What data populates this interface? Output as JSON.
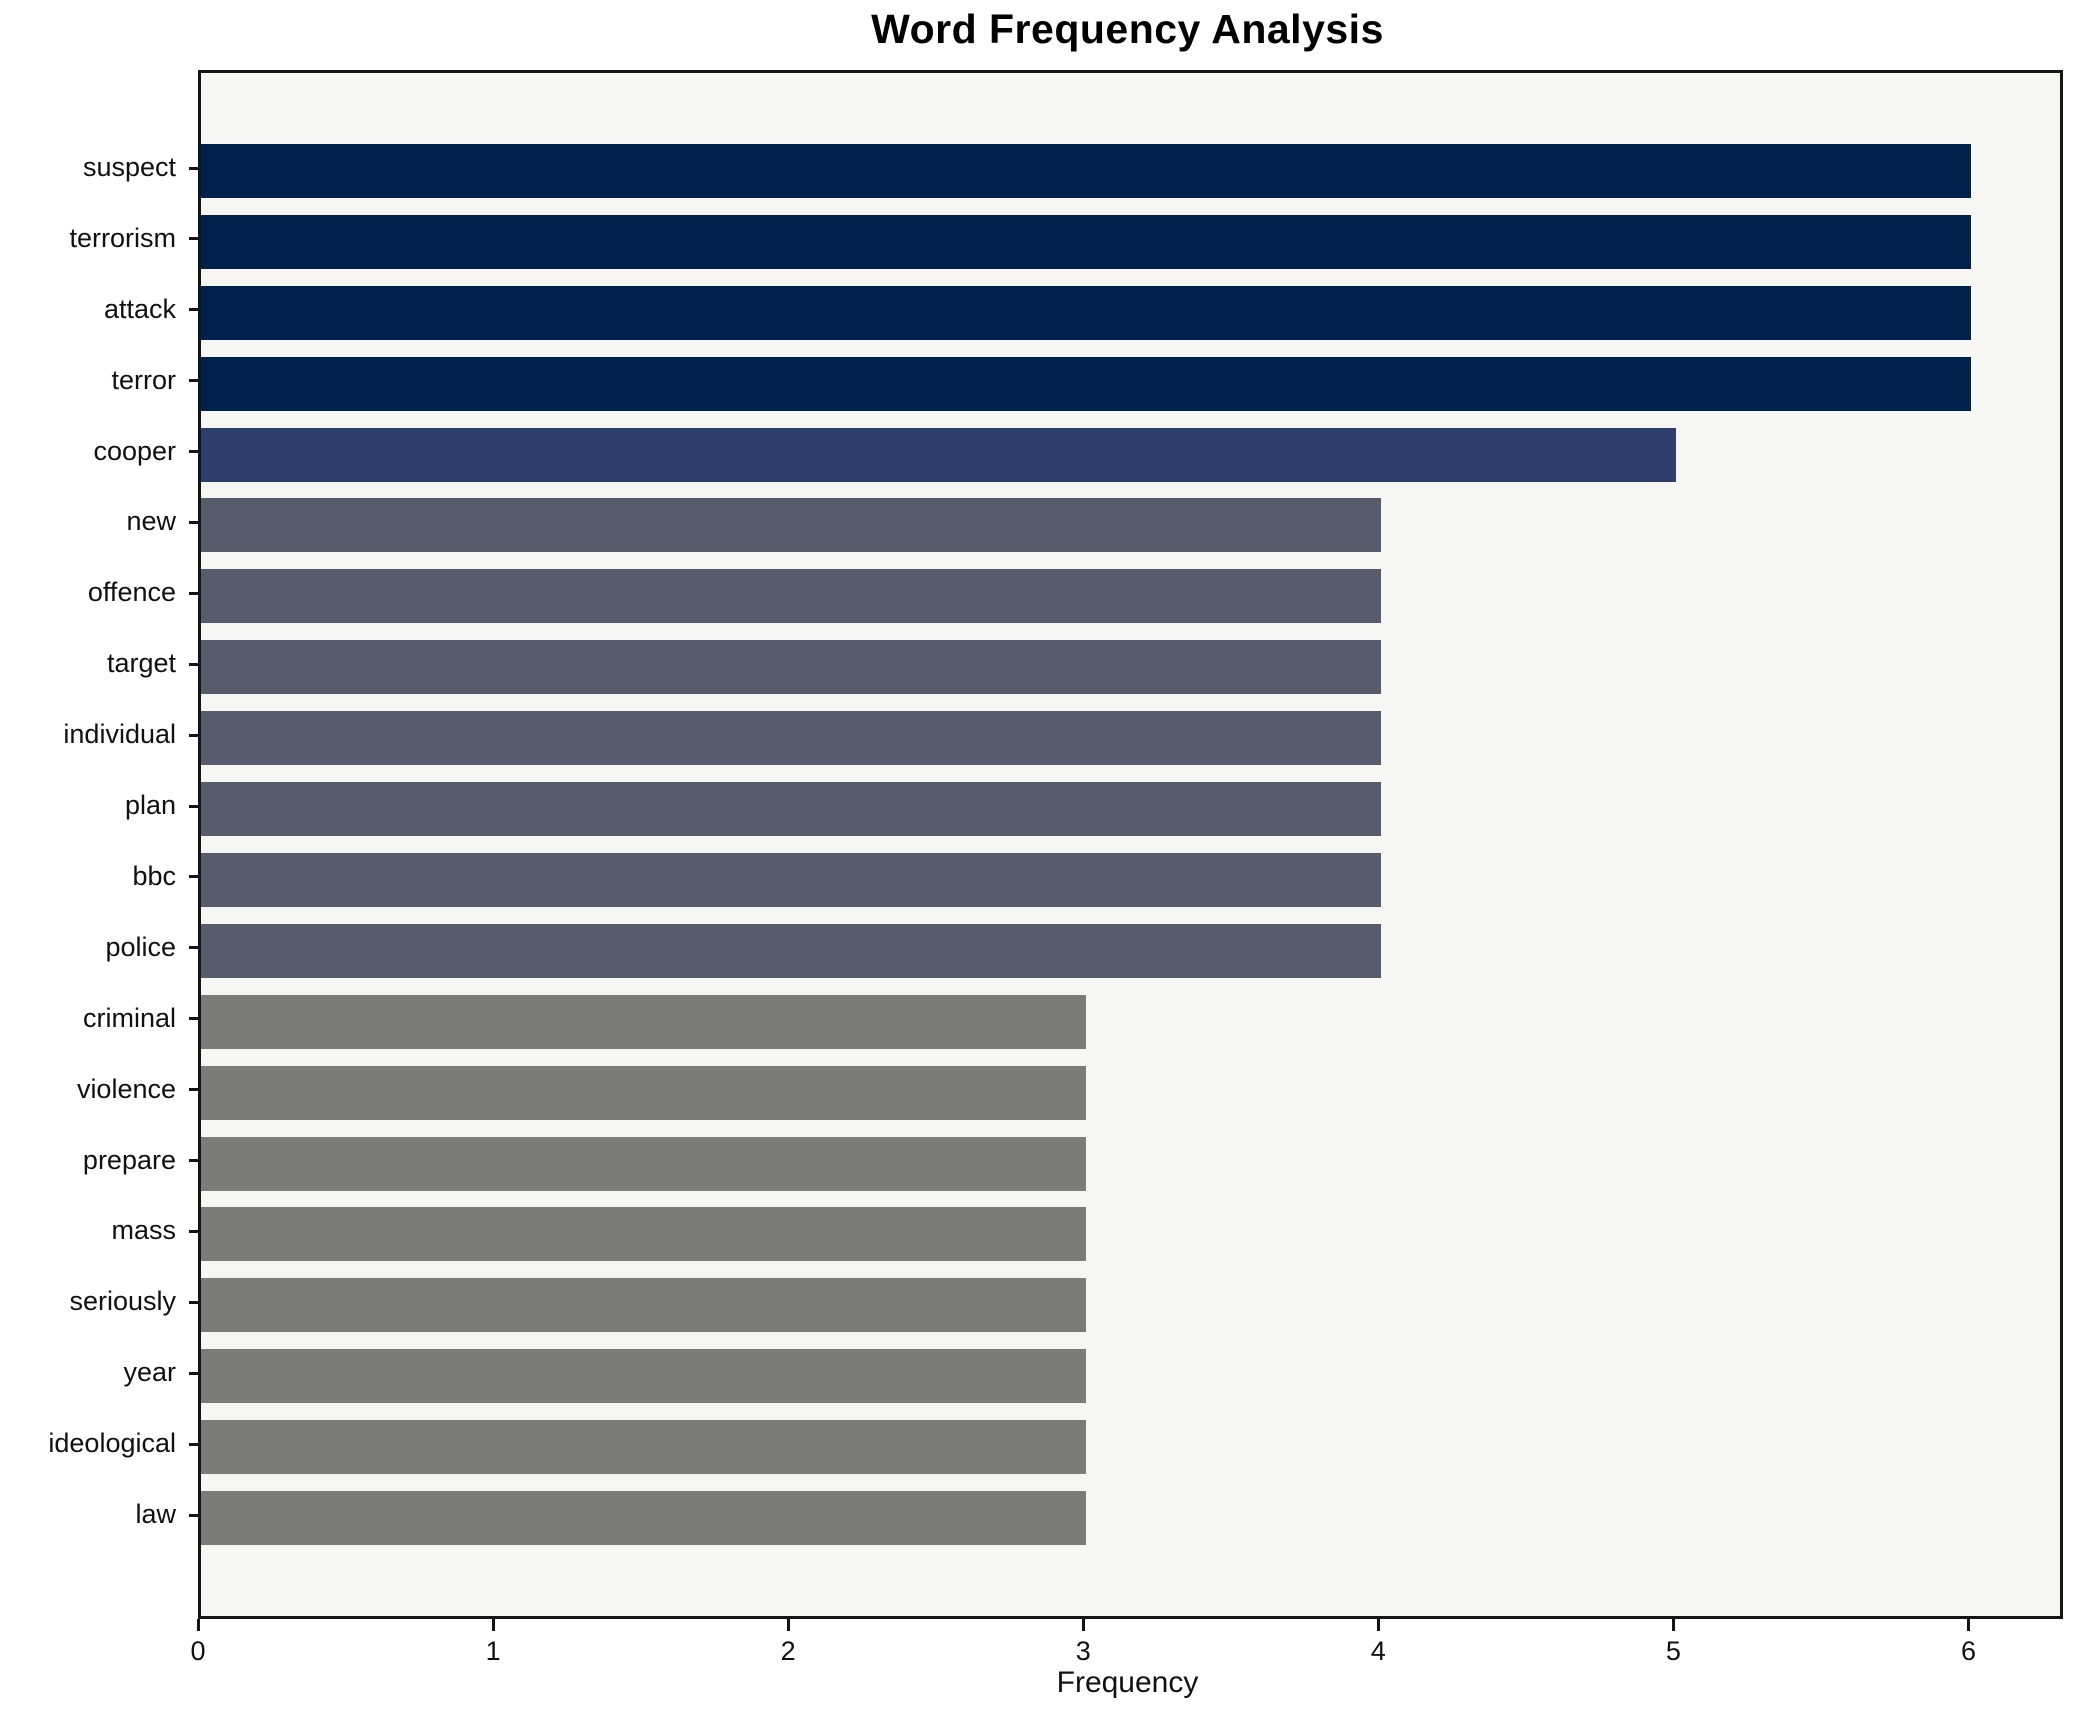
{
  "title": "Word Frequency Analysis",
  "chart_data": {
    "type": "bar",
    "orientation": "horizontal",
    "title": "Word Frequency Analysis",
    "xlabel": "Frequency",
    "ylabel": "",
    "categories": [
      "suspect",
      "terrorism",
      "attack",
      "terror",
      "cooper",
      "new",
      "offence",
      "target",
      "individual",
      "plan",
      "bbc",
      "police",
      "criminal",
      "violence",
      "prepare",
      "mass",
      "seriously",
      "year",
      "ideological",
      "law"
    ],
    "values": [
      6,
      6,
      6,
      6,
      5,
      4,
      4,
      4,
      4,
      4,
      4,
      4,
      3,
      3,
      3,
      3,
      3,
      3,
      3,
      3
    ],
    "bar_colors": [
      "#01224d",
      "#01224d",
      "#01224d",
      "#01224d",
      "#2e3f6d",
      "#575c6c",
      "#575c6c",
      "#575c6c",
      "#575c6c",
      "#575c6c",
      "#575c6c",
      "#575c6c",
      "#7b7b78",
      "#7b7b78",
      "#7b7b78",
      "#7b7b78",
      "#7b7b78",
      "#7b7b78",
      "#7b7b78",
      "#7b7b78"
    ],
    "xlim": [
      0,
      6.3
    ],
    "xticks": [
      "0",
      "1",
      "2",
      "3",
      "4",
      "5",
      "6"
    ],
    "grid": false,
    "legend": null,
    "plot_background": "#f6f6f4",
    "figure_background": "#ffffff",
    "spine_color": "#141414"
  }
}
